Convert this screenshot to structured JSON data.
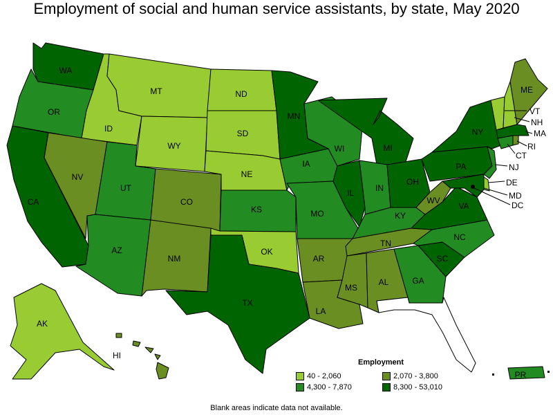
{
  "title": "Employment of social and human service assistants, by state, May 2020",
  "footnote": "Blank areas indicate data not available.",
  "legend": {
    "title": "Employment",
    "items": [
      {
        "label": "40 - 2,060",
        "color": "#99cc33"
      },
      {
        "label": "2,070 - 3,800",
        "color": "#6b8e23"
      },
      {
        "label": "4,300 - 7,870",
        "color": "#228b22"
      },
      {
        "label": "8,300 - 53,010",
        "color": "#006400"
      }
    ]
  },
  "states": {
    "WA": "WA",
    "OR": "OR",
    "CA": "CA",
    "ID": "ID",
    "NV": "NV",
    "MT": "MT",
    "WY": "WY",
    "UT": "UT",
    "AZ": "AZ",
    "CO": "CO",
    "NM": "NM",
    "ND": "ND",
    "SD": "SD",
    "NE": "NE",
    "KS": "KS",
    "OK": "OK",
    "TX": "TX",
    "MN": "MN",
    "IA": "IA",
    "MO": "MO",
    "AR": "AR",
    "LA": "LA",
    "WI": "WI",
    "IL": "IL",
    "MI": "MI",
    "IN": "IN",
    "OH": "OH",
    "KY": "KY",
    "TN": "TN",
    "MS": "MS",
    "AL": "AL",
    "GA": "GA",
    "FL": "",
    "SC": "SC",
    "NC": "NC",
    "VA": "VA",
    "WV": "WV",
    "PA": "PA",
    "NY": "NY",
    "ME": "ME",
    "VT": "VT",
    "NH": "NH",
    "MA": "MA",
    "RI": "RI",
    "CT": "CT",
    "NJ": "NJ",
    "DE": "DE",
    "MD": "MD",
    "DC": "DC",
    "AK": "AK",
    "HI": "HI",
    "PR": "PR"
  }
}
